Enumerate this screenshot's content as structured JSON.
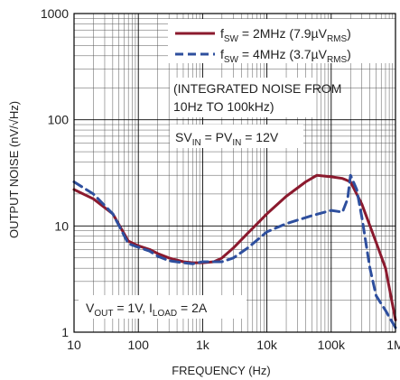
{
  "chart_data": {
    "type": "line",
    "xscale": "log",
    "yscale": "log",
    "xlim": [
      10,
      1000000
    ],
    "ylim": [
      1,
      1000
    ],
    "grid": true,
    "legend_position": "top-right",
    "xlabel": "FREQUENCY (Hz)",
    "ylabel": "OUTPUT NOISE (nV/√Hz)",
    "x_tick_labels": [
      "10",
      "100",
      "1k",
      "10k",
      "100k",
      "1M"
    ],
    "x_tick_values": [
      10,
      100,
      1000,
      10000,
      100000,
      1000000
    ],
    "y_tick_labels": [
      "1",
      "10",
      "100",
      "1000"
    ],
    "y_tick_values": [
      1,
      10,
      100,
      1000
    ],
    "series": [
      {
        "name": "fSW = 2MHz (7.9µVRMS)",
        "legend_base": "f",
        "legend_sub1": "SW",
        "legend_mid": " = 2MHz (7.9µV",
        "legend_sub2": "RMS",
        "legend_end": ")",
        "color": "#8b1a2e",
        "dash": "solid",
        "x": [
          10,
          20,
          40,
          70,
          100,
          150,
          200,
          300,
          500,
          700,
          1000,
          1500,
          2000,
          3000,
          5000,
          10000,
          20000,
          40000,
          60000,
          100000,
          150000,
          200000,
          300000,
          500000,
          700000,
          1000000
        ],
        "y": [
          22,
          18,
          13,
          7.2,
          6.5,
          6.0,
          5.5,
          5.0,
          4.6,
          4.5,
          4.5,
          4.6,
          5.0,
          6.2,
          8.5,
          13,
          19,
          26,
          30,
          29,
          28,
          26,
          16,
          7,
          4,
          1.3
        ]
      },
      {
        "name": "fSW = 4MHz (3.7µVRMS)",
        "legend_base": "f",
        "legend_sub1": "SW",
        "legend_mid": " = 4MHz (3.7µV",
        "legend_sub2": "RMS",
        "legend_end": ")",
        "color": "#2e4f9e",
        "dash": "dashed",
        "x": [
          10,
          20,
          40,
          70,
          100,
          150,
          200,
          300,
          500,
          700,
          1000,
          1500,
          2000,
          3000,
          5000,
          10000,
          20000,
          50000,
          100000,
          150000,
          180000,
          200000,
          250000,
          300000,
          400000,
          500000,
          700000,
          1000000
        ],
        "y": [
          26,
          20,
          13,
          6.8,
          6.3,
          5.8,
          5.2,
          4.7,
          4.5,
          4.4,
          4.6,
          4.6,
          4.6,
          5.0,
          6.2,
          8.8,
          10.5,
          12.5,
          14,
          13.5,
          18,
          30,
          22,
          12,
          4,
          2.2,
          1.6,
          1.1
        ]
      }
    ],
    "annotations": {
      "noise_line1": "(INTEGRATED NOISE FROM",
      "noise_line2": "10Hz TO 100kHz)",
      "sv_base": "SV",
      "sv_sub1": "IN",
      "sv_mid": " = PV",
      "sv_sub2": "IN",
      "sv_end": " = 12V",
      "vout_base": "V",
      "vout_sub1": "OUT",
      "vout_mid": " = 1V, I",
      "vout_sub2": "LOAD",
      "vout_end": " = 2A"
    }
  }
}
